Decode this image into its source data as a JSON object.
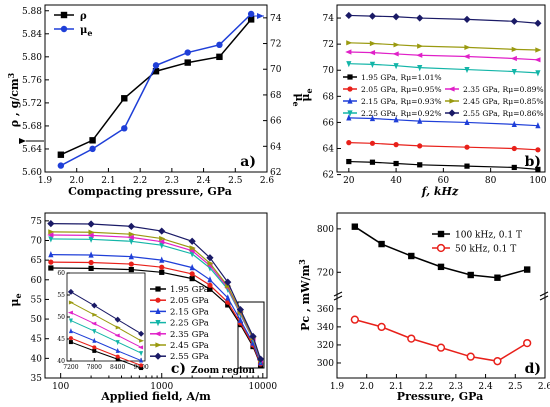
{
  "chart_data": [
    {
      "panel": "a)",
      "type": "line",
      "xlabel": "Compacting pressure, GPa",
      "ylabel_left": "ρ , g/cm",
      "ylabel_left_sup": "3",
      "ylabel_right": "μe",
      "xlim": [
        1.9,
        2.6
      ],
      "xticks": [
        "1.9",
        "2.0",
        "2.1",
        "2.2",
        "2.3",
        "2.4",
        "2.5",
        "2.6"
      ],
      "ylim_left": [
        5.6,
        5.89
      ],
      "yticks_left": [
        "5.60",
        "5.64",
        "5.68",
        "5.72",
        "5.76",
        "5.80",
        "5.84",
        "5.88"
      ],
      "ylim_right": [
        62,
        75
      ],
      "yticks_right": [
        "62",
        "64",
        "66",
        "68",
        "70",
        "72",
        "74"
      ],
      "series": [
        {
          "name": "ρ",
          "axis": "left",
          "color": "#000000",
          "marker": "square",
          "x": [
            1.95,
            2.05,
            2.15,
            2.25,
            2.35,
            2.45,
            2.55
          ],
          "y": [
            5.63,
            5.655,
            5.728,
            5.775,
            5.79,
            5.8,
            5.865
          ]
        },
        {
          "name": "μe",
          "axis": "right",
          "color": "#1f3fd8",
          "marker": "circle",
          "x": [
            1.95,
            2.05,
            2.15,
            2.25,
            2.35,
            2.45,
            2.55
          ],
          "y": [
            62.5,
            63.8,
            65.4,
            70.3,
            71.3,
            71.9,
            74.3
          ]
        }
      ]
    },
    {
      "panel": "b)",
      "type": "line",
      "xlabel": "f, kHz",
      "ylabel": "μe",
      "xlim": [
        15,
        103
      ],
      "xticks": [
        "20",
        "40",
        "60",
        "80",
        "100"
      ],
      "ylim": [
        62.2,
        75
      ],
      "yticks": [
        "62",
        "64",
        "66",
        "68",
        "70",
        "72",
        "74"
      ],
      "series": [
        {
          "name": "1.95 GPa, Rμ=1.01%",
          "color": "#000000",
          "marker": "square",
          "x": [
            20,
            30,
            40,
            50,
            70,
            90,
            100
          ],
          "y": [
            63.0,
            62.95,
            62.85,
            62.75,
            62.65,
            62.55,
            62.4
          ]
        },
        {
          "name": "2.05 GPa, Rμ=0.95%",
          "color": "#e8201a",
          "marker": "circle",
          "x": [
            20,
            30,
            40,
            50,
            70,
            90,
            100
          ],
          "y": [
            64.45,
            64.4,
            64.3,
            64.2,
            64.1,
            64.0,
            63.9
          ]
        },
        {
          "name": "2.15 GPa, Rμ=0.93%",
          "color": "#1f3fd8",
          "marker": "triangle-up",
          "x": [
            20,
            30,
            40,
            50,
            70,
            90,
            100
          ],
          "y": [
            66.35,
            66.3,
            66.2,
            66.1,
            66.0,
            65.85,
            65.75
          ]
        },
        {
          "name": "2.25 GPa, Rμ=0.92%",
          "color": "#13b5a8",
          "marker": "triangle-down",
          "x": [
            20,
            30,
            40,
            50,
            70,
            90,
            100
          ],
          "y": [
            70.5,
            70.45,
            70.35,
            70.2,
            70.05,
            69.9,
            69.8
          ]
        },
        {
          "name": "2.35 GPa, Rμ=0.89%",
          "color": "#e020c8",
          "marker": "triangle-left",
          "x": [
            20,
            30,
            40,
            50,
            70,
            90,
            100
          ],
          "y": [
            71.4,
            71.35,
            71.25,
            71.15,
            71.05,
            70.9,
            70.8
          ]
        },
        {
          "name": "2.45 GPa, Rμ=0.85%",
          "color": "#9a9a10",
          "marker": "triangle-right",
          "x": [
            20,
            30,
            40,
            50,
            70,
            90,
            100
          ],
          "y": [
            72.1,
            72.05,
            71.95,
            71.85,
            71.75,
            71.6,
            71.55
          ]
        },
        {
          "name": "2.55 GPa, Rμ=0.86%",
          "color": "#1a1a66",
          "marker": "diamond",
          "x": [
            20,
            30,
            40,
            50,
            70,
            90,
            100
          ],
          "y": [
            74.2,
            74.15,
            74.1,
            74.0,
            73.9,
            73.75,
            73.6
          ]
        }
      ]
    },
    {
      "panel": "c)",
      "type": "line",
      "xscale": "log",
      "xlabel": "Applied field, A/m",
      "ylabel": "μe",
      "xlim": [
        70,
        11000
      ],
      "xticks": [
        "100",
        "1000",
        "10000"
      ],
      "ylim": [
        35,
        77
      ],
      "yticks": [
        "35",
        "40",
        "45",
        "50",
        "55",
        "60",
        "65",
        "70",
        "75"
      ],
      "annotation": "Zoom region",
      "series": [
        {
          "name": "1.95 GPa",
          "color": "#000000",
          "marker": "square",
          "values": [
            63.0,
            62.9,
            62.6,
            61.9,
            60.3,
            57.6,
            53.6,
            48.6,
            43.0,
            38.3
          ],
          "x": [
            80,
            200,
            500,
            1000,
            2000,
            3000,
            4500,
            6000,
            8000,
            9500
          ]
        },
        {
          "name": "2.05 GPa",
          "color": "#e8201a",
          "marker": "circle",
          "values": [
            64.5,
            64.4,
            64.0,
            63.2,
            61.5,
            58.6,
            54.3,
            49.0,
            43.4,
            38.6
          ],
          "x": [
            80,
            200,
            500,
            1000,
            2000,
            3000,
            4500,
            6000,
            8000,
            9500
          ]
        },
        {
          "name": "2.15 GPa",
          "color": "#1f3fd8",
          "marker": "triangle-up",
          "values": [
            66.4,
            66.3,
            65.9,
            65.0,
            63.1,
            60.0,
            55.4,
            49.7,
            43.9,
            38.9
          ],
          "x": [
            80,
            200,
            500,
            1000,
            2000,
            3000,
            4500,
            6000,
            8000,
            9500
          ]
        },
        {
          "name": "2.25 GPa",
          "color": "#13b5a8",
          "marker": "triangle-down",
          "values": [
            70.4,
            70.3,
            69.8,
            68.8,
            66.6,
            63.0,
            57.6,
            51.2,
            44.8,
            39.4
          ],
          "x": [
            80,
            200,
            500,
            1000,
            2000,
            3000,
            4500,
            6000,
            8000,
            9500
          ]
        },
        {
          "name": "2.35 GPa",
          "color": "#e020c8",
          "marker": "triangle-left",
          "values": [
            71.4,
            71.3,
            70.8,
            69.7,
            67.4,
            63.6,
            58.0,
            51.5,
            45.0,
            39.5
          ],
          "x": [
            80,
            200,
            500,
            1000,
            2000,
            3000,
            4500,
            6000,
            8000,
            9500
          ]
        },
        {
          "name": "2.45 GPa",
          "color": "#9a9a10",
          "marker": "triangle-right",
          "values": [
            72.2,
            72.1,
            71.6,
            70.5,
            68.1,
            64.2,
            58.4,
            51.8,
            45.2,
            39.6
          ],
          "x": [
            80,
            200,
            500,
            1000,
            2000,
            3000,
            4500,
            6000,
            8000,
            9500
          ]
        },
        {
          "name": "2.55 GPa",
          "color": "#1a1a66",
          "marker": "diamond",
          "values": [
            74.3,
            74.2,
            73.6,
            72.4,
            69.8,
            65.6,
            59.4,
            52.4,
            45.6,
            39.8
          ],
          "x": [
            80,
            200,
            500,
            1000,
            2000,
            3000,
            4500,
            6000,
            8000,
            9500
          ]
        }
      ],
      "inset": {
        "xlim": [
          7100,
          9100
        ],
        "xticks": [
          "7200",
          "7800",
          "8400",
          "9000"
        ],
        "ylim": [
          40,
          60
        ],
        "yticks": [
          "40",
          "45",
          "50",
          "55",
          "60"
        ],
        "x": [
          7200,
          7800,
          8400,
          9000
        ],
        "series_values": [
          [
            44.3,
            42.3,
            40.4,
            38.4
          ],
          [
            45.2,
            43.1,
            41.0,
            39.0
          ],
          [
            46.8,
            44.6,
            42.3,
            40.1
          ],
          [
            49.2,
            46.8,
            44.3,
            41.8
          ],
          [
            51.0,
            48.5,
            45.8,
            43.1
          ],
          [
            53.3,
            50.5,
            47.6,
            44.6
          ],
          [
            55.7,
            52.6,
            49.4,
            46.2
          ]
        ]
      }
    },
    {
      "panel": "d)",
      "type": "line",
      "xlabel": "Pressure, GPa",
      "ylabel": "Pc , mW/m",
      "ylabel_sup": "3",
      "xlim": [
        1.9,
        2.6
      ],
      "xticks": [
        "1.9",
        "2.0",
        "2.1",
        "2.2",
        "2.3",
        "2.4",
        "2.5",
        "2.6"
      ],
      "yticks_upper": [
        "720",
        "800"
      ],
      "yticks_lower": [
        "300",
        "320",
        "340",
        "360"
      ],
      "broken_axis": true,
      "series": [
        {
          "name": "100 kHz, 0.1 T",
          "color": "#000000",
          "marker": "square",
          "axis": "upper",
          "x": [
            1.96,
            2.05,
            2.15,
            2.25,
            2.35,
            2.44,
            2.54
          ],
          "y": [
            804,
            772,
            750,
            730,
            715,
            710,
            725
          ]
        },
        {
          "name": "50 kHz, 0.1 T",
          "color": "#e8201a",
          "marker": "circle",
          "axis": "lower",
          "x": [
            1.96,
            2.05,
            2.15,
            2.25,
            2.35,
            2.44,
            2.54
          ],
          "y": [
            348,
            340,
            327,
            317,
            307,
            302,
            322
          ]
        }
      ]
    }
  ]
}
